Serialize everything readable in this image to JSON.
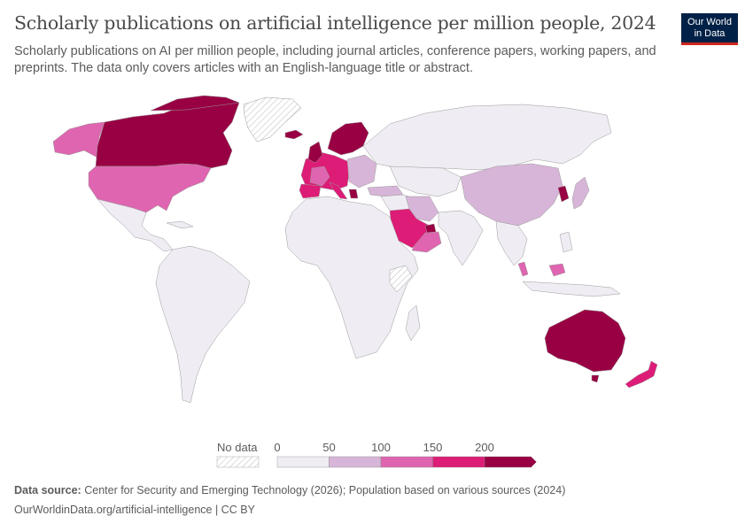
{
  "header": {
    "title": "Scholarly publications on artificial intelligence per million people, 2024",
    "subtitle": "Scholarly publications on AI per million people, including journal articles, conference papers, working papers, and preprints. The data only covers articles with an English-language title or abstract.",
    "logo_line1": "Our World",
    "logo_line2": "in Data"
  },
  "legend": {
    "no_data_label": "No data",
    "ticks": [
      "0",
      "50",
      "100",
      "150",
      "200"
    ],
    "colors": [
      "#f0ecf3",
      "#d7b5d8",
      "#df65b0",
      "#dd1c77",
      "#980043"
    ],
    "no_data_color": "#e6e6e6"
  },
  "chart_data": {
    "type": "choropleth",
    "title": "Scholarly publications on artificial intelligence per million people, 2024",
    "unit": "publications per million people",
    "bins": [
      [
        0,
        50
      ],
      [
        50,
        100
      ],
      [
        100,
        150
      ],
      [
        150,
        200
      ],
      [
        200,
        null
      ]
    ],
    "regions_by_bin": {
      "200+": [
        "Canada",
        "Australia",
        "Nordic countries",
        "UK",
        "Switzerland",
        "Greece"
      ],
      "150-200": [
        "Saudi Arabia",
        "UAE",
        "Italy",
        "Germany",
        "Spain",
        "Portugal",
        "New Zealand",
        "South Korea"
      ],
      "100-150": [
        "United States",
        "Malaysia",
        "France"
      ],
      "50-100": [
        "China",
        "Japan",
        "Turkey",
        "Iran"
      ],
      "0-50": [
        "Russia",
        "Latin America",
        "Africa",
        "India",
        "Southeast Asia"
      ],
      "no data": [
        "Greenland",
        "Somalia/Ethiopia region"
      ]
    }
  },
  "footer": {
    "source_label": "Data source:",
    "source_text": "Center for Security and Emerging Technology (2026); Population based on various sources (2024)",
    "link_text": "OurWorldinData.org/artificial-intelligence | CC BY"
  }
}
